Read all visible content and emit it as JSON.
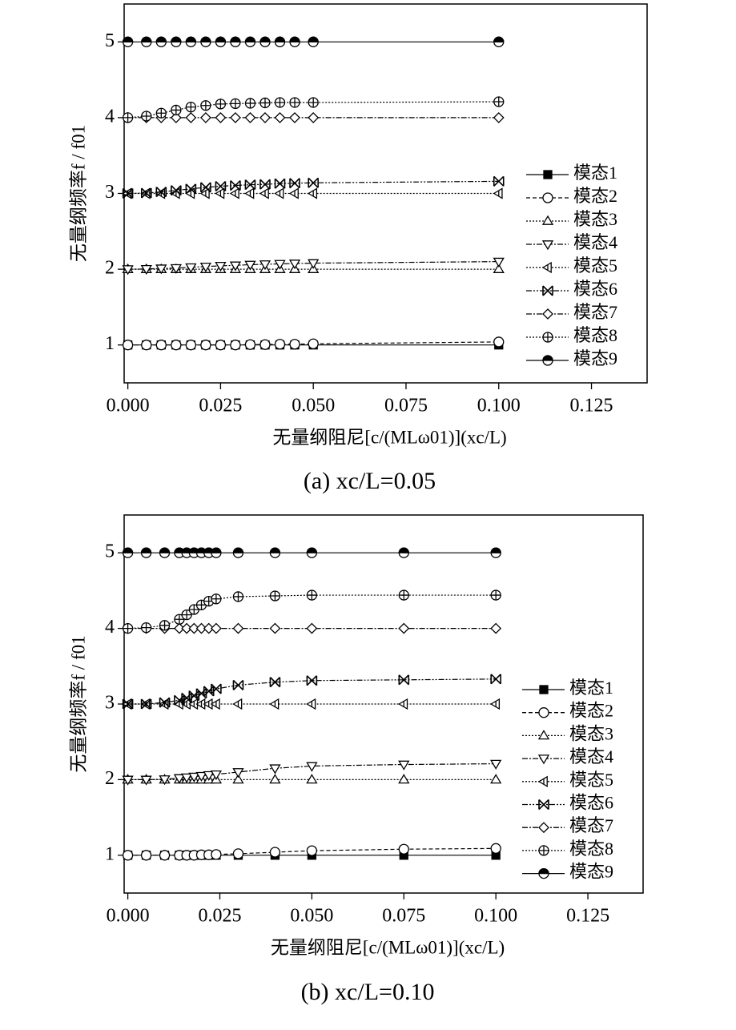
{
  "chart_data": [
    {
      "type": "line",
      "title": "(a) xc/L=0.05",
      "xlabel": "无量纲阻尼[c/(MLω01)](xc/L)",
      "ylabel": "无量纲频率f / f01",
      "xlim": [
        -0.001,
        0.14
      ],
      "ylim": [
        0.5,
        5.5
      ],
      "xticks": [
        {
          "value": 0,
          "label": "0.000"
        },
        {
          "value": 0.025,
          "label": "0.025"
        },
        {
          "value": 0.05,
          "label": "0.050"
        },
        {
          "value": 0.075,
          "label": "0.075"
        },
        {
          "value": 0.1,
          "label": "0.100"
        },
        {
          "value": 0.125,
          "label": "0.125"
        }
      ],
      "yticks": [
        1,
        2,
        3,
        4,
        5
      ],
      "legend": "right",
      "x": [
        0,
        0.005,
        0.009,
        0.013,
        0.017,
        0.021,
        0.025,
        0.029,
        0.033,
        0.037,
        0.041,
        0.045,
        0.05,
        0.1
      ],
      "series": [
        {
          "name": "模态1",
          "color": "#000000",
          "marker": "square",
          "linestyle": "solid",
          "values": [
            1,
            1,
            1,
            1,
            1,
            1,
            1,
            1,
            1,
            1,
            1,
            1,
            1,
            1
          ]
        },
        {
          "name": "模态2",
          "color": "#000000",
          "marker": "circle",
          "linestyle": "dashed",
          "values": [
            1,
            1,
            1,
            1,
            1,
            1,
            1,
            1,
            1.005,
            1.005,
            1.01,
            1.01,
            1.015,
            1.04
          ]
        },
        {
          "name": "模态3",
          "color": "#000000",
          "marker": "triangle-up",
          "linestyle": "dotted",
          "values": [
            2,
            2,
            2,
            2,
            2,
            2,
            2,
            2,
            2,
            2,
            2,
            2,
            2,
            2
          ]
        },
        {
          "name": "模态4",
          "color": "#000000",
          "marker": "triangle-down",
          "linestyle": "dashdot",
          "values": [
            2,
            2.003,
            2.01,
            2.015,
            2.025,
            2.035,
            2.045,
            2.05,
            2.06,
            2.065,
            2.07,
            2.075,
            2.08,
            2.1
          ]
        },
        {
          "name": "模态5",
          "color": "#000000",
          "marker": "triangle-left",
          "linestyle": "dotted",
          "values": [
            3,
            3,
            3,
            3,
            3,
            3,
            3,
            3,
            3,
            3,
            3,
            3,
            3,
            3
          ]
        },
        {
          "name": "模态6",
          "color": "#000000",
          "marker": "cross",
          "linestyle": "dashdotdot",
          "values": [
            3,
            3.005,
            3.02,
            3.04,
            3.06,
            3.08,
            3.095,
            3.105,
            3.115,
            3.12,
            3.13,
            3.135,
            3.14,
            3.16
          ]
        },
        {
          "name": "模态7",
          "color": "#000000",
          "marker": "diamond",
          "linestyle": "dashdot",
          "values": [
            4,
            4,
            4,
            4,
            4,
            4,
            4,
            4,
            4,
            4,
            4,
            4,
            4,
            4
          ]
        },
        {
          "name": "模态8",
          "color": "#000000",
          "marker": "circle-plus",
          "linestyle": "dotted",
          "values": [
            4,
            4.02,
            4.06,
            4.1,
            4.14,
            4.16,
            4.18,
            4.185,
            4.19,
            4.195,
            4.2,
            4.2,
            4.2,
            4.21
          ]
        },
        {
          "name": "模态9",
          "color": "#000000",
          "marker": "circle-half",
          "linestyle": "solid",
          "values": [
            5,
            5,
            5,
            5,
            5,
            5,
            5,
            5,
            5,
            5,
            5,
            5,
            5,
            5
          ]
        }
      ]
    },
    {
      "type": "line",
      "title": "(b) xc/L=0.10",
      "xlabel": "无量纲阻尼[c/(MLω01)](xc/L)",
      "ylabel": "无量纲频率f / f01",
      "xlim": [
        -0.001,
        0.14
      ],
      "ylim": [
        0.5,
        5.5
      ],
      "xticks": [
        {
          "value": 0,
          "label": "0.000"
        },
        {
          "value": 0.025,
          "label": "0.025"
        },
        {
          "value": 0.05,
          "label": "0.050"
        },
        {
          "value": 0.075,
          "label": "0.075"
        },
        {
          "value": 0.1,
          "label": "0.100"
        },
        {
          "value": 0.125,
          "label": "0.125"
        }
      ],
      "yticks": [
        1,
        2,
        3,
        4,
        5
      ],
      "legend": "right",
      "x": [
        0,
        0.005,
        0.01,
        0.014,
        0.016,
        0.018,
        0.02,
        0.022,
        0.024,
        0.03,
        0.04,
        0.05,
        0.075,
        0.1
      ],
      "series": [
        {
          "name": "模态1",
          "color": "#000000",
          "marker": "square",
          "linestyle": "solid",
          "values": [
            1,
            1,
            1,
            1,
            1,
            1,
            1,
            1,
            1,
            1,
            1,
            1,
            1,
            1
          ]
        },
        {
          "name": "模态2",
          "color": "#000000",
          "marker": "circle",
          "linestyle": "dashed",
          "values": [
            1,
            1,
            1,
            1,
            1,
            1,
            1.005,
            1.005,
            1.01,
            1.02,
            1.04,
            1.06,
            1.08,
            1.09
          ]
        },
        {
          "name": "模态3",
          "color": "#000000",
          "marker": "triangle-up",
          "linestyle": "dotted",
          "values": [
            2,
            2,
            2,
            2,
            2,
            2,
            2,
            2,
            2,
            2,
            2,
            2,
            2,
            2
          ]
        },
        {
          "name": "模态4",
          "color": "#000000",
          "marker": "triangle-down",
          "linestyle": "dashdot",
          "values": [
            2,
            2,
            2.005,
            2.02,
            2.03,
            2.04,
            2.05,
            2.06,
            2.07,
            2.1,
            2.15,
            2.18,
            2.2,
            2.21
          ]
        },
        {
          "name": "模态5",
          "color": "#000000",
          "marker": "triangle-left",
          "linestyle": "dotted",
          "values": [
            3,
            3,
            3,
            3,
            3,
            3,
            3,
            3,
            3,
            3,
            3,
            3,
            3,
            3
          ]
        },
        {
          "name": "模态6",
          "color": "#000000",
          "marker": "cross",
          "linestyle": "dashdotdot",
          "values": [
            3,
            3,
            3.02,
            3.05,
            3.08,
            3.11,
            3.14,
            3.17,
            3.2,
            3.25,
            3.29,
            3.31,
            3.32,
            3.33
          ]
        },
        {
          "name": "模态7",
          "color": "#000000",
          "marker": "diamond",
          "linestyle": "dashdot",
          "values": [
            4,
            4,
            4,
            4,
            4,
            4,
            4,
            4,
            4,
            4,
            4,
            4,
            4,
            4
          ]
        },
        {
          "name": "模态8",
          "color": "#000000",
          "marker": "circle-plus",
          "linestyle": "dotted",
          "values": [
            4,
            4.01,
            4.04,
            4.12,
            4.18,
            4.25,
            4.31,
            4.36,
            4.39,
            4.42,
            4.43,
            4.44,
            4.44,
            4.44
          ]
        },
        {
          "name": "模态9",
          "color": "#000000",
          "marker": "circle-half",
          "linestyle": "solid",
          "values": [
            5,
            5,
            5,
            5,
            5,
            5,
            5,
            5,
            5,
            5,
            5,
            5,
            5,
            5
          ]
        }
      ]
    }
  ]
}
